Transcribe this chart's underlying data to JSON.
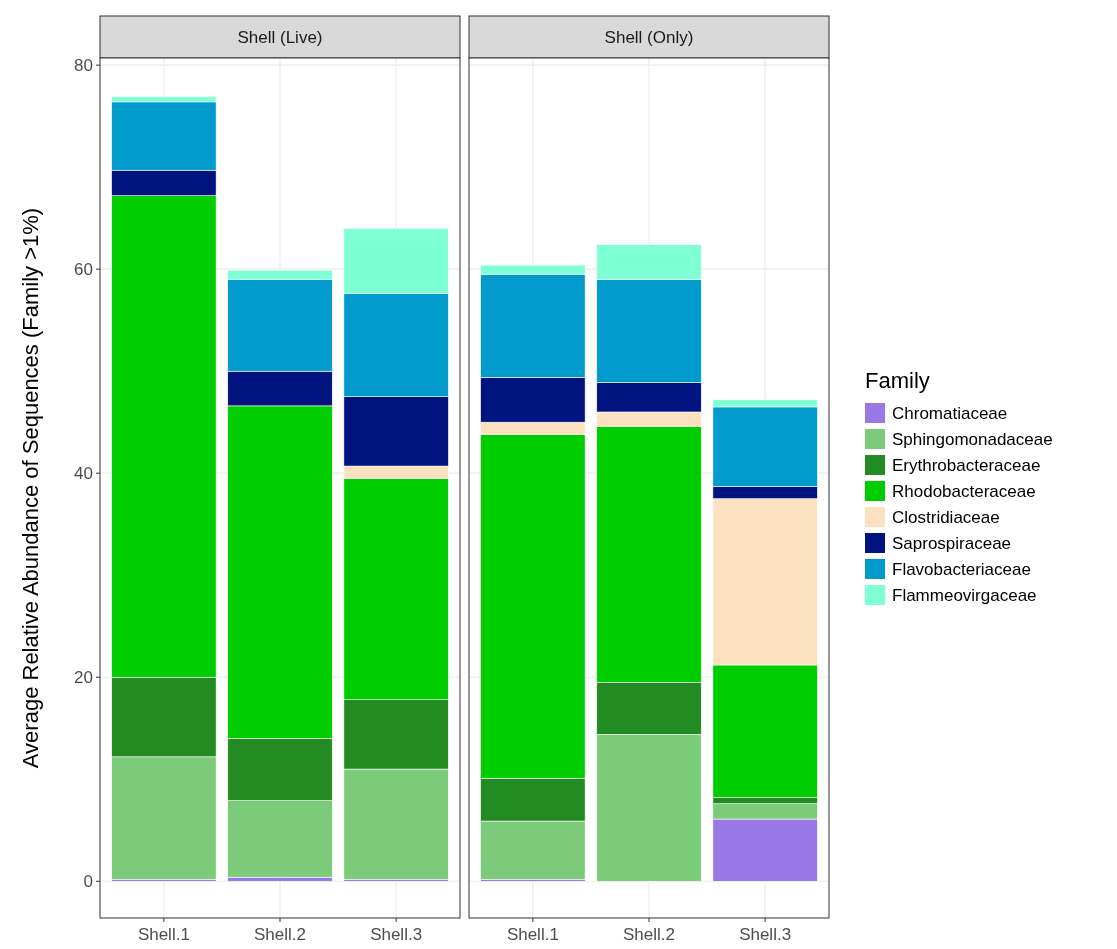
{
  "chart_data": [
    {
      "type": "bar",
      "title": "Shell (Live)",
      "ylabel": "Average Relative Abundance of Sequences (Family >1%)",
      "categories": [
        "Shell.1",
        "Shell.2",
        "Shell.3"
      ],
      "stacked": true,
      "ylim": [
        -3.6,
        80.7
      ],
      "yticks": [
        0,
        20,
        40,
        60,
        80
      ],
      "grid": true,
      "legend": false,
      "series": [
        {
          "color": "#9a77e6",
          "values": [
            0.2,
            0.4,
            0.2
          ]
        },
        {
          "color": "#7ccb7a",
          "values": [
            12.0,
            7.5,
            10.8
          ]
        },
        {
          "color": "#228b22",
          "values": [
            7.8,
            6.1,
            6.8
          ]
        },
        {
          "color": "#00cd00",
          "values": [
            47.2,
            32.6,
            21.7
          ]
        },
        {
          "color": "#fce1c1",
          "values": [
            null,
            null,
            1.2
          ]
        },
        {
          "color": "#00137f",
          "values": [
            2.5,
            3.4,
            6.8
          ]
        },
        {
          "color": "#009acd",
          "values": [
            6.7,
            9.0,
            10.1
          ]
        },
        {
          "color": "#7fffd4",
          "values": [
            0.5,
            0.9,
            6.4
          ]
        }
      ]
    },
    {
      "type": "bar",
      "title": "Shell (Only)",
      "categories": [
        "Shell.1",
        "Shell.2",
        "Shell.3"
      ],
      "stacked": true,
      "ylim": [
        -3.6,
        80.7
      ],
      "yticks": [
        0,
        20,
        40,
        60,
        80
      ],
      "tick_labels": "x",
      "grid": true,
      "legend": "right",
      "legend_title": "Family",
      "series": [
        {
          "name": "Chromatiaceae",
          "color": "#9a77e6",
          "values": [
            0.2,
            null,
            6.1
          ]
        },
        {
          "name": "Sphingomonadaceae",
          "color": "#7ccb7a",
          "values": [
            5.7,
            14.4,
            1.5
          ]
        },
        {
          "name": "Erythrobacteraceae",
          "color": "#228b22",
          "values": [
            4.2,
            5.1,
            0.6
          ]
        },
        {
          "name": "Rhodobacteraceae",
          "color": "#00cd00",
          "values": [
            33.7,
            25.1,
            13.0
          ]
        },
        {
          "name": "Clostridiaceae",
          "color": "#fce1c1",
          "values": [
            1.2,
            1.4,
            16.3
          ]
        },
        {
          "name": "Saprospiraceae",
          "color": "#00137f",
          "values": [
            4.4,
            2.9,
            1.2
          ]
        },
        {
          "name": "Flavobacteriaceae",
          "color": "#009acd",
          "values": [
            10.1,
            10.1,
            7.8
          ]
        },
        {
          "name": "Flammeovirgaceae",
          "color": "#7fffd4",
          "values": [
            0.9,
            3.4,
            0.7
          ]
        }
      ]
    }
  ]
}
